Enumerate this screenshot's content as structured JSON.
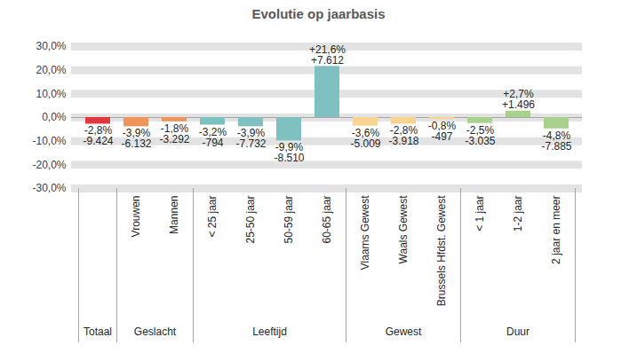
{
  "chart_data": {
    "type": "bar",
    "title": "Evolutie op jaarbasis",
    "categories": [
      null,
      "Vrouwen",
      "Mannen",
      "< 25 jaar",
      "25-50 jaar",
      "50-59 jaar",
      "60-65 jaar",
      "Vlaams Gewest",
      "Waals Gewest",
      "Brussels Hfdst. Gewest",
      "< 1 jaar",
      "1-2 jaar",
      "2 jaar en meer"
    ],
    "groups": [
      "Totaal",
      "Geslacht",
      "Geslacht",
      "Leeftijd",
      "Leeftijd",
      "Leeftijd",
      "Leeftijd",
      "Gewest",
      "Gewest",
      "Gewest",
      "Duur",
      "Duur",
      "Duur"
    ],
    "values": [
      -2.8,
      -3.9,
      -1.8,
      -3.2,
      -3.9,
      -9.9,
      21.6,
      -3.6,
      -2.8,
      -0.8,
      -2.5,
      2.7,
      -4.8
    ],
    "value_labels": [
      "-2,8%",
      "-3,9%",
      "-1,8%",
      "-3,2%",
      "-3,9%",
      "-9,9%",
      "+21,6%",
      "-3,6%",
      "-2,8%",
      "-0,8%",
      "-2,5%",
      "+2,7%",
      "-4,8%"
    ],
    "absolute_values": [
      -9424,
      -6132,
      -3292,
      -794,
      -7732,
      -8510,
      7612,
      -5009,
      -3918,
      -497,
      -3035,
      1496,
      -7885
    ],
    "absolute_labels": [
      "-9.424",
      "-6.132",
      "-3.292",
      "-794",
      "-7.732",
      "-8.510",
      "+7.612",
      "-5.009",
      "-3.918",
      "-497",
      "-3.035",
      "+1.496",
      "-7.885"
    ],
    "colors": [
      "#e0383e",
      "#f0955a",
      "#f0955a",
      "#7fc0c0",
      "#7fc0c0",
      "#7fc0c0",
      "#7fc0c0",
      "#f9d38f",
      "#f9d38f",
      "#f9d38f",
      "#a9d18e",
      "#a9d18e",
      "#a9d18e"
    ],
    "ylim": [
      -30,
      30
    ],
    "yticks": [
      {
        "value": -30,
        "label": "-30,0%"
      },
      {
        "value": -20,
        "label": "-20,0%"
      },
      {
        "value": -10,
        "label": "-10,0%"
      },
      {
        "value": 0,
        "label": "0,0%"
      },
      {
        "value": 10,
        "label": "10,0%"
      },
      {
        "value": 20,
        "label": "20,0%"
      },
      {
        "value": 30,
        "label": "30,0%"
      }
    ],
    "grid": true,
    "data_labels": true
  }
}
